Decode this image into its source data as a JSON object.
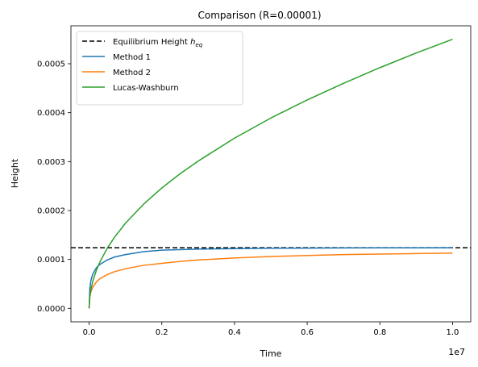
{
  "chart_data": {
    "type": "line",
    "title": "Comparison (R=0.00001)",
    "xlabel": "Time",
    "ylabel": "Height",
    "x_offset_label": "1e7",
    "xlim": [
      -0.05,
      1.05
    ],
    "ylim": [
      -2.75e-05,
      0.0005775
    ],
    "x_scale_note": "x values in units of 1e7",
    "x_ticks": [
      0.0,
      0.2,
      0.4,
      0.6,
      0.8,
      1.0
    ],
    "x_tick_labels": [
      "0.0",
      "0.2",
      "0.4",
      "0.6",
      "0.8",
      "1.0"
    ],
    "y_ticks": [
      0.0,
      0.0001,
      0.0002,
      0.0003,
      0.0004,
      0.0005
    ],
    "y_tick_labels": [
      "0.0000",
      "0.0001",
      "0.0002",
      "0.0003",
      "0.0004",
      "0.0005"
    ],
    "grid": false,
    "legend_position": "top-left",
    "hline": {
      "name": "Equilibrium Height",
      "symbol": "h",
      "subscript": "eq",
      "y": 0.000124,
      "color": "#000000",
      "style": "dashed"
    },
    "series": [
      {
        "name": "Method 1",
        "color": "#1f77b4",
        "x": [
          0.0,
          0.002,
          0.005,
          0.01,
          0.02,
          0.03,
          0.05,
          0.07,
          0.1,
          0.15,
          0.2,
          0.25,
          0.3,
          0.4,
          0.5,
          0.6,
          0.7,
          0.8,
          0.9,
          1.0
        ],
        "y": [
          0.0,
          4.1e-05,
          5.7e-05,
          7e-05,
          8.3e-05,
          9e-05,
          9.9e-05,
          0.000105,
          0.00011,
          0.000116,
          0.000119,
          0.00012,
          0.000121,
          0.000122,
          0.000123,
          0.0001232,
          0.0001235,
          0.0001237,
          0.0001238,
          0.000124
        ]
      },
      {
        "name": "Method 2",
        "color": "#ff7f0e",
        "x": [
          0.0,
          0.002,
          0.005,
          0.01,
          0.02,
          0.03,
          0.05,
          0.07,
          0.1,
          0.15,
          0.2,
          0.25,
          0.3,
          0.4,
          0.5,
          0.6,
          0.7,
          0.8,
          0.9,
          1.0
        ],
        "y": [
          0.0,
          2.3e-05,
          3.4e-05,
          4.3e-05,
          5.4e-05,
          6.1e-05,
          6.9e-05,
          7.5e-05,
          8.1e-05,
          8.8e-05,
          9.2e-05,
          9.6e-05,
          9.9e-05,
          0.000103,
          0.000106,
          0.000108,
          0.00011,
          0.000111,
          0.000112,
          0.000113
        ]
      },
      {
        "name": "Lucas-Washburn",
        "color": "#2ca02c",
        "x": [
          0.0,
          0.002,
          0.005,
          0.01,
          0.02,
          0.03,
          0.05,
          0.07,
          0.1,
          0.15,
          0.2,
          0.25,
          0.3,
          0.4,
          0.5,
          0.6,
          0.7,
          0.8,
          0.9,
          1.0
        ],
        "y": [
          0.0,
          2.46e-05,
          3.89e-05,
          5.5e-05,
          7.78e-05,
          9.53e-05,
          0.000123,
          0.0001455,
          0.000174,
          0.000213,
          0.000246,
          0.000275,
          0.000301,
          0.000348,
          0.000389,
          0.000426,
          0.00046,
          0.000492,
          0.000522,
          0.00055
        ]
      }
    ]
  }
}
